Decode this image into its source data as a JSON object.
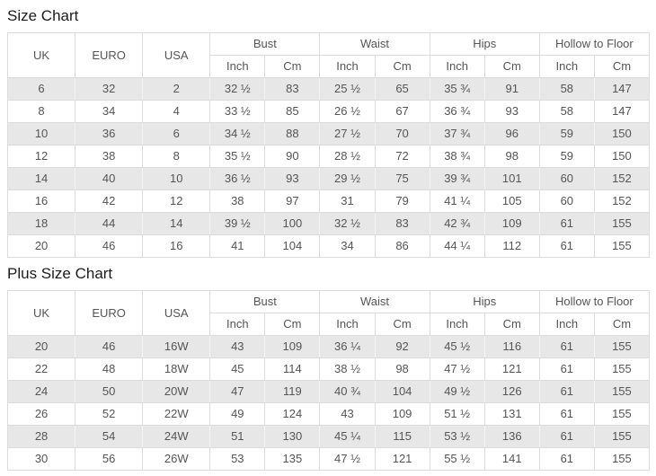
{
  "colors": {
    "table_border": "#dcdcdc",
    "striped_row_background": "#e7e7e7",
    "row_background": "#ffffff",
    "cell_text": "#555555",
    "title_text": "#1c1c1c"
  },
  "size_chart": {
    "title": "Size Chart",
    "header": {
      "size_columns": [
        "UK",
        "EURO",
        "USA"
      ],
      "measure_groups": [
        "Bust",
        "Waist",
        "Hips",
        "Hollow to Floor"
      ],
      "unit_labels": [
        "Inch",
        "Cm"
      ]
    },
    "rows": [
      [
        "6",
        "32",
        "2",
        "32 ½",
        "83",
        "25 ½",
        "65",
        "35 ¾",
        "91",
        "58",
        "147"
      ],
      [
        "8",
        "34",
        "4",
        "33 ½",
        "85",
        "26 ½",
        "67",
        "36 ¾",
        "93",
        "58",
        "147"
      ],
      [
        "10",
        "36",
        "6",
        "34 ½",
        "88",
        "27 ½",
        "70",
        "37 ¾",
        "96",
        "59",
        "150"
      ],
      [
        "12",
        "38",
        "8",
        "35 ½",
        "90",
        "28 ½",
        "72",
        "38 ¾",
        "98",
        "59",
        "150"
      ],
      [
        "14",
        "40",
        "10",
        "36 ½",
        "93",
        "29 ½",
        "75",
        "39 ¾",
        "101",
        "60",
        "152"
      ],
      [
        "16",
        "42",
        "12",
        "38",
        "97",
        "31",
        "79",
        "41 ¼",
        "105",
        "60",
        "152"
      ],
      [
        "18",
        "44",
        "14",
        "39 ½",
        "100",
        "32 ½",
        "83",
        "42 ¾",
        "109",
        "61",
        "155"
      ],
      [
        "20",
        "46",
        "16",
        "41",
        "104",
        "34",
        "86",
        "44 ¼",
        "112",
        "61",
        "155"
      ]
    ]
  },
  "plus_size_chart": {
    "title": "Plus Size Chart",
    "header": {
      "size_columns": [
        "UK",
        "EURO",
        "USA"
      ],
      "measure_groups": [
        "Bust",
        "Waist",
        "Hips",
        "Hollow to Floor"
      ],
      "unit_labels": [
        "Inch",
        "Cm"
      ]
    },
    "rows": [
      [
        "20",
        "46",
        "16W",
        "43",
        "109",
        "36 ¼",
        "92",
        "45 ½",
        "116",
        "61",
        "155"
      ],
      [
        "22",
        "48",
        "18W",
        "45",
        "114",
        "38 ½",
        "98",
        "47 ½",
        "121",
        "61",
        "155"
      ],
      [
        "24",
        "50",
        "20W",
        "47",
        "119",
        "40 ¾",
        "104",
        "49 ½",
        "126",
        "61",
        "155"
      ],
      [
        "26",
        "52",
        "22W",
        "49",
        "124",
        "43",
        "109",
        "51 ½",
        "131",
        "61",
        "155"
      ],
      [
        "28",
        "54",
        "24W",
        "51",
        "130",
        "45 ¼",
        "115",
        "53 ½",
        "136",
        "61",
        "155"
      ],
      [
        "30",
        "56",
        "26W",
        "53",
        "135",
        "47 ½",
        "121",
        "55 ½",
        "141",
        "61",
        "155"
      ]
    ]
  }
}
